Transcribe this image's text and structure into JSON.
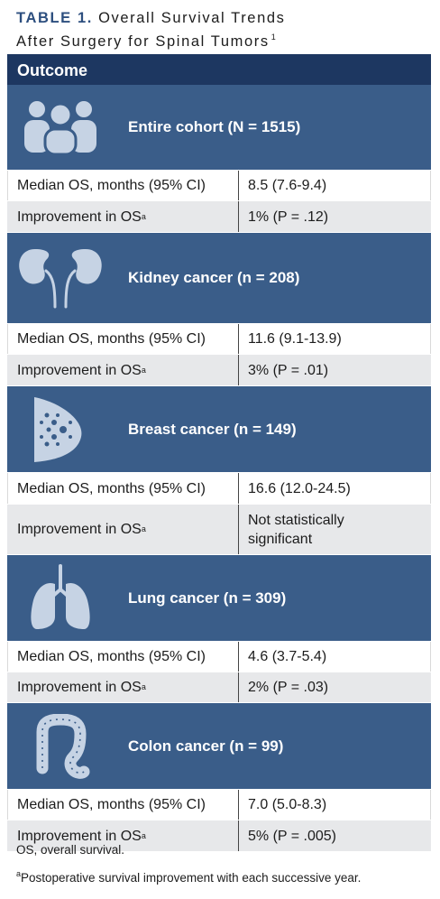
{
  "title": {
    "prefix": "TABLE 1.",
    "line1": "Overall Survival Trends",
    "line2": "After Surgery for Spinal Tumors",
    "ref": "1"
  },
  "header": {
    "outcome": "Outcome"
  },
  "sections": [
    {
      "icon": "people-group-icon",
      "label": "Entire cohort (N = 1515)",
      "median_label": "Median OS, months (95% CI)",
      "median_value": "8.5 (7.6-9.4)",
      "improvement_label": "Improvement in OS",
      "improvement_sup": "a",
      "improvement_value": "1% (P = .12)"
    },
    {
      "icon": "kidneys-icon",
      "label": "Kidney cancer (n = 208)",
      "median_label": "Median OS, months (95% CI)",
      "median_value": "11.6 (9.1-13.9)",
      "improvement_label": "Improvement in OS",
      "improvement_sup": "a",
      "improvement_value": "3% (P = .01)"
    },
    {
      "icon": "breast-icon",
      "label": "Breast cancer (n = 149)",
      "median_label": "Median OS, months (95% CI)",
      "median_value": "16.6 (12.0-24.5)",
      "improvement_label": "Improvement in OS",
      "improvement_sup": "a",
      "improvement_value": "Not statistically significant"
    },
    {
      "icon": "lungs-icon",
      "label": "Lung cancer (n = 309)",
      "median_label": "Median OS, months (95% CI)",
      "median_value": "4.6 (3.7-5.4)",
      "improvement_label": "Improvement in OS",
      "improvement_sup": "a",
      "improvement_value": "2% (P = .03)"
    },
    {
      "icon": "colon-icon",
      "label": "Colon cancer (n = 99)",
      "median_label": "Median OS, months (95% CI)",
      "median_value": "7.0 (5.0-8.3)",
      "improvement_label": "Improvement in OS",
      "improvement_sup": "a",
      "improvement_value": "5% (P = .005)"
    }
  ],
  "footnotes": {
    "os": "OS, overall survival.",
    "a_mark": "a",
    "a_text": "Postoperative survival improvement with each successive year."
  },
  "colors": {
    "header_navy": "#1d3761",
    "section_blue": "#3a5d89",
    "row_gray": "#e7e8ea",
    "title_accent": "#2d4f7f"
  }
}
